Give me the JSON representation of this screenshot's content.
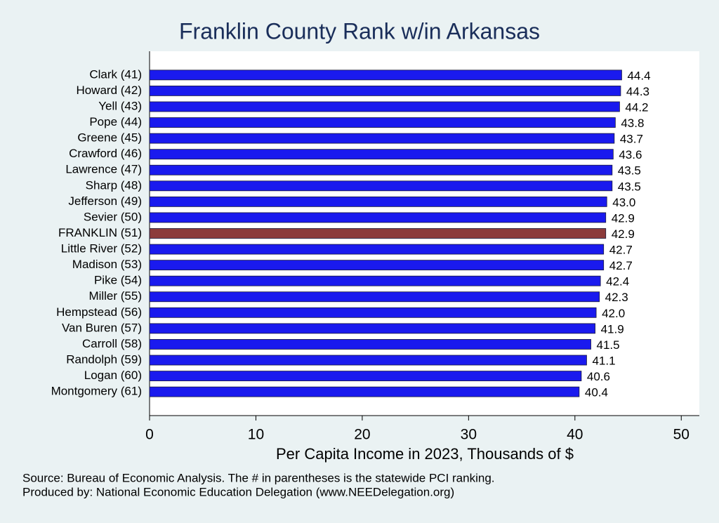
{
  "chart_data": {
    "type": "hbar",
    "title": "Franklin County Rank w/in Arkansas",
    "xlabel": "Per Capita Income in 2023, Thousands of $",
    "notes": [
      "Source: Bureau of Economic Analysis. The # in parentheses is the statewide PCI ranking.",
      "Produced by: National Economic Education Delegation (www.NEEDelegation.org)"
    ],
    "categories": [
      "Clark (41)",
      "Howard (42)",
      "Yell (43)",
      "Pope (44)",
      "Greene (45)",
      "Crawford (46)",
      "Lawrence (47)",
      "Sharp (48)",
      "Jefferson (49)",
      "Sevier (50)",
      "FRANKLIN (51)",
      "Little River (52)",
      "Madison (53)",
      "Pike (54)",
      "Miller (55)",
      "Hempstead (56)",
      "Van Buren (57)",
      "Carroll (58)",
      "Randolph (59)",
      "Logan (60)",
      "Montgomery (61)"
    ],
    "values": [
      44.4,
      44.3,
      44.2,
      43.8,
      43.7,
      43.6,
      43.5,
      43.5,
      43.0,
      42.9,
      42.9,
      42.7,
      42.7,
      42.4,
      42.3,
      42.0,
      41.9,
      41.5,
      41.1,
      40.6,
      40.4
    ],
    "value_labels": [
      "44.4",
      "44.3",
      "44.2",
      "43.8",
      "43.7",
      "43.6",
      "43.5",
      "43.5",
      "43.0",
      "42.9",
      "42.9",
      "42.7",
      "42.7",
      "42.4",
      "42.3",
      "42.0",
      "41.9",
      "41.5",
      "41.1",
      "40.6",
      "40.4"
    ],
    "colors": [
      "#1a1aee",
      "#1a1aee",
      "#1a1aee",
      "#1a1aee",
      "#1a1aee",
      "#1a1aee",
      "#1a1aee",
      "#1a1aee",
      "#1a1aee",
      "#1a1aee",
      "#8c3b3b",
      "#1a1aee",
      "#1a1aee",
      "#1a1aee",
      "#1a1aee",
      "#1a1aee",
      "#1a1aee",
      "#1a1aee",
      "#1a1aee",
      "#1a1aee",
      "#1a1aee"
    ],
    "xlim": [
      0,
      51.7
    ],
    "xticks": [
      0,
      10,
      20,
      30,
      40,
      50
    ]
  }
}
